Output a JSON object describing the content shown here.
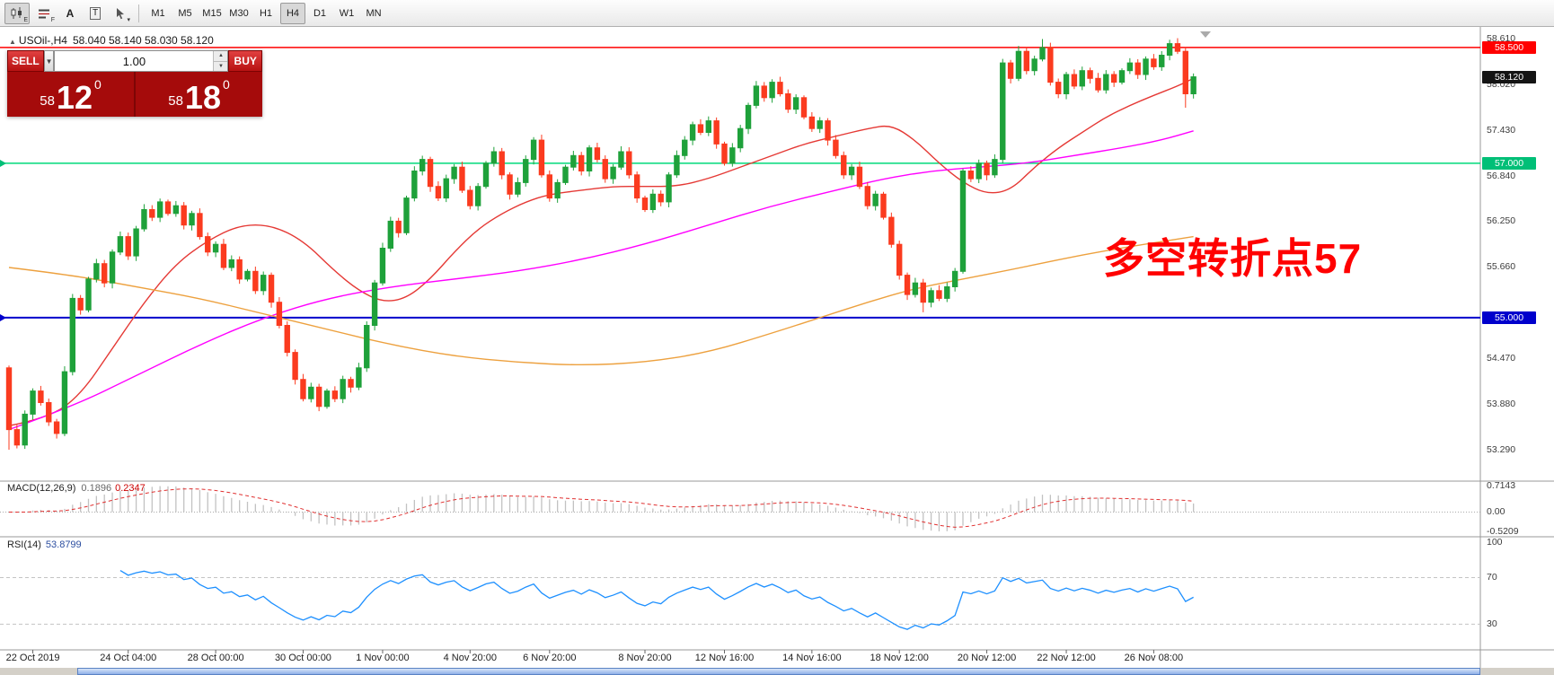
{
  "toolbar": {
    "icon_buttons": [
      {
        "name": "candlestick-chart-icon",
        "glyph": "candles",
        "sub": "E",
        "pressed": true
      },
      {
        "name": "indicator-list-icon",
        "glyph": "lines",
        "sub": "F",
        "pressed": false
      },
      {
        "name": "text-tool-icon",
        "glyph": "A",
        "sub": "",
        "pressed": false
      },
      {
        "name": "label-tool-icon",
        "glyph": "T",
        "sub": "",
        "pressed": false
      },
      {
        "name": "cursor-tools-icon",
        "glyph": "cursor",
        "sub": "▾",
        "pressed": false
      }
    ],
    "timeframes": [
      "M1",
      "M5",
      "M15",
      "M30",
      "H1",
      "H4",
      "D1",
      "W1",
      "MN"
    ],
    "active_timeframe": "H4"
  },
  "chart_header": {
    "symbol": "USOil-,H4",
    "ohlc": "58.040 58.140 58.030 58.120"
  },
  "trade_panel": {
    "sell_label": "SELL",
    "buy_label": "BUY",
    "volume": "1.00",
    "sell": {
      "prefix": "58",
      "big": "12",
      "sup": "0"
    },
    "buy": {
      "prefix": "58",
      "big": "18",
      "sup": "0"
    }
  },
  "annotation": {
    "text": "多空转折点57",
    "color": "#ff0000"
  },
  "indicators": {
    "macd": {
      "name": "MACD(12,26,9)",
      "main_value": "0.1896",
      "signal_value": "0.2347",
      "axis_labels": [
        {
          "text": "0.7143",
          "value": 0.7143
        },
        {
          "text": "0.00",
          "value": 0
        },
        {
          "text": "-0.5209",
          "value": -0.5209
        }
      ]
    },
    "rsi": {
      "name": "RSI(14)",
      "value": "53.8799",
      "axis_labels": [
        {
          "text": "100",
          "value": 100
        },
        {
          "text": "70",
          "value": 70
        },
        {
          "text": "30",
          "value": 30
        }
      ],
      "levels": [
        70,
        30
      ]
    }
  },
  "chart_data": {
    "type": "candlestick",
    "symbol": "USOil-",
    "timeframe": "H4",
    "last_price": 58.12,
    "first_open": 54.35,
    "closes": [
      53.55,
      53.35,
      53.75,
      54.05,
      53.9,
      53.65,
      53.5,
      54.3,
      55.25,
      55.1,
      55.5,
      55.7,
      55.45,
      55.85,
      56.05,
      55.8,
      56.15,
      56.4,
      56.3,
      56.5,
      56.35,
      56.45,
      56.2,
      56.35,
      56.05,
      55.85,
      55.95,
      55.65,
      55.75,
      55.5,
      55.6,
      55.35,
      55.55,
      55.2,
      54.9,
      54.55,
      54.2,
      53.95,
      54.1,
      53.85,
      54.05,
      53.95,
      54.2,
      54.1,
      54.35,
      54.9,
      55.45,
      55.9,
      56.25,
      56.1,
      56.55,
      56.9,
      57.05,
      56.7,
      56.55,
      56.8,
      56.95,
      56.65,
      56.45,
      56.7,
      57.0,
      57.15,
      56.85,
      56.6,
      56.75,
      57.05,
      57.3,
      56.85,
      56.55,
      56.75,
      56.95,
      57.1,
      56.9,
      57.2,
      57.05,
      56.8,
      56.95,
      57.15,
      56.85,
      56.55,
      56.4,
      56.6,
      56.5,
      56.85,
      57.1,
      57.3,
      57.5,
      57.4,
      57.55,
      57.25,
      57.0,
      57.2,
      57.45,
      57.75,
      58.0,
      57.85,
      58.05,
      57.9,
      57.7,
      57.85,
      57.6,
      57.45,
      57.55,
      57.3,
      57.1,
      56.85,
      56.95,
      56.7,
      56.45,
      56.6,
      56.3,
      55.95,
      55.55,
      55.3,
      55.45,
      55.2,
      55.35,
      55.25,
      55.4,
      55.6,
      56.9,
      56.8,
      57.0,
      56.85,
      57.05,
      58.3,
      58.1,
      58.45,
      58.2,
      58.35,
      58.5,
      58.05,
      57.9,
      58.15,
      58.0,
      58.2,
      58.1,
      57.95,
      58.15,
      58.05,
      58.2,
      58.3,
      58.15,
      58.35,
      58.25,
      58.4,
      58.55,
      58.45,
      57.9,
      58.12
    ],
    "wick_overrides": {
      "0": {
        "low": 53.29
      },
      "2": {
        "low": 53.3
      },
      "115": {
        "low": 55.07
      },
      "130": {
        "high": 58.61
      },
      "146": {
        "high": 58.6
      },
      "148": {
        "low": 57.72
      }
    },
    "price_lines": [
      {
        "price": 58.5,
        "color": "#ff0000",
        "badge": "58.500",
        "badge_bg": "#ff0000"
      },
      {
        "price": 57.0,
        "color": "#00d97a",
        "badge": "57.000",
        "badge_bg": "#00bf77"
      },
      {
        "price": 55.0,
        "color": "#0000cc",
        "badge": "55.000",
        "badge_bg": "#0000cc"
      }
    ],
    "current_badge": {
      "text": "58.120",
      "bg": "#141414"
    },
    "y_axis_labels": [
      {
        "text": "58.610",
        "price": 58.61
      },
      {
        "text": "58.020",
        "price": 58.02
      },
      {
        "text": "57.430",
        "price": 57.43
      },
      {
        "text": "56.840",
        "price": 56.84
      },
      {
        "text": "56.250",
        "price": 56.25
      },
      {
        "text": "55.660",
        "price": 55.66
      },
      {
        "text": "54.470",
        "price": 54.47
      },
      {
        "text": "53.880",
        "price": 53.88
      },
      {
        "text": "53.290",
        "price": 53.29
      }
    ],
    "time_labels": [
      {
        "text": "22 Oct 2019",
        "index": 3
      },
      {
        "text": "24 Oct 04:00",
        "index": 15
      },
      {
        "text": "28 Oct 00:00",
        "index": 26
      },
      {
        "text": "30 Oct 00:00",
        "index": 37
      },
      {
        "text": "1 Nov 00:00",
        "index": 47
      },
      {
        "text": "4 Nov 20:00",
        "index": 58
      },
      {
        "text": "6 Nov 20:00",
        "index": 68
      },
      {
        "text": "8 Nov 20:00",
        "index": 80
      },
      {
        "text": "12 Nov 16:00",
        "index": 90
      },
      {
        "text": "14 Nov 16:00",
        "index": 101
      },
      {
        "text": "18 Nov 12:00",
        "index": 112
      },
      {
        "text": "20 Nov 12:00",
        "index": 123
      },
      {
        "text": "22 Nov 12:00",
        "index": 133
      },
      {
        "text": "26 Nov 08:00",
        "index": 144
      }
    ],
    "moving_averages": [
      {
        "name": "ma-fast-red",
        "color": "#e53935",
        "points": [
          [
            0,
            53.6
          ],
          [
            5,
            53.7
          ],
          [
            9,
            54.0
          ],
          [
            13,
            54.6
          ],
          [
            17,
            55.2
          ],
          [
            21,
            55.7
          ],
          [
            25,
            56.0
          ],
          [
            29,
            56.2
          ],
          [
            33,
            56.2
          ],
          [
            37,
            56.0
          ],
          [
            41,
            55.6
          ],
          [
            44,
            55.35
          ],
          [
            47,
            55.2
          ],
          [
            50,
            55.25
          ],
          [
            53,
            55.5
          ],
          [
            56,
            55.85
          ],
          [
            59,
            56.15
          ],
          [
            62,
            56.35
          ],
          [
            65,
            56.5
          ],
          [
            68,
            56.6
          ],
          [
            72,
            56.65
          ],
          [
            76,
            56.7
          ],
          [
            80,
            56.7
          ],
          [
            84,
            56.7
          ],
          [
            88,
            56.8
          ],
          [
            92,
            56.95
          ],
          [
            96,
            57.1
          ],
          [
            100,
            57.25
          ],
          [
            104,
            57.35
          ],
          [
            108,
            57.45
          ],
          [
            111,
            57.5
          ],
          [
            114,
            57.3
          ],
          [
            117,
            57.0
          ],
          [
            120,
            56.75
          ],
          [
            123,
            56.6
          ],
          [
            126,
            56.65
          ],
          [
            129,
            56.95
          ],
          [
            132,
            57.2
          ],
          [
            135,
            57.4
          ],
          [
            138,
            57.6
          ],
          [
            141,
            57.75
          ],
          [
            144,
            57.88
          ],
          [
            147,
            58.0
          ],
          [
            149,
            58.1
          ]
        ]
      },
      {
        "name": "ma-mid-magenta",
        "color": "#ff00ff",
        "points": [
          [
            0,
            53.55
          ],
          [
            8,
            53.85
          ],
          [
            16,
            54.25
          ],
          [
            24,
            54.65
          ],
          [
            32,
            55.0
          ],
          [
            40,
            55.25
          ],
          [
            48,
            55.4
          ],
          [
            56,
            55.5
          ],
          [
            64,
            55.6
          ],
          [
            72,
            55.75
          ],
          [
            80,
            55.95
          ],
          [
            88,
            56.2
          ],
          [
            96,
            56.45
          ],
          [
            104,
            56.65
          ],
          [
            110,
            56.8
          ],
          [
            116,
            56.9
          ],
          [
            122,
            56.95
          ],
          [
            128,
            57.0
          ],
          [
            134,
            57.1
          ],
          [
            140,
            57.2
          ],
          [
            145,
            57.3
          ],
          [
            149,
            57.42
          ]
        ]
      },
      {
        "name": "ma-slow-orange",
        "color": "#eda13f",
        "points": [
          [
            0,
            55.65
          ],
          [
            8,
            55.55
          ],
          [
            16,
            55.4
          ],
          [
            24,
            55.25
          ],
          [
            32,
            55.05
          ],
          [
            40,
            54.85
          ],
          [
            48,
            54.65
          ],
          [
            56,
            54.5
          ],
          [
            64,
            54.42
          ],
          [
            72,
            54.38
          ],
          [
            80,
            54.42
          ],
          [
            88,
            54.55
          ],
          [
            96,
            54.8
          ],
          [
            102,
            55.0
          ],
          [
            108,
            55.2
          ],
          [
            114,
            55.38
          ],
          [
            120,
            55.5
          ],
          [
            126,
            55.62
          ],
          [
            132,
            55.75
          ],
          [
            138,
            55.87
          ],
          [
            144,
            55.97
          ],
          [
            149,
            56.05
          ]
        ]
      }
    ],
    "colors": {
      "up": "#1ea13a",
      "down": "#fb3b1f",
      "macd_hist": "#c2c2c2",
      "macd_signal": "#e03030",
      "rsi": "#1e90ff"
    }
  }
}
